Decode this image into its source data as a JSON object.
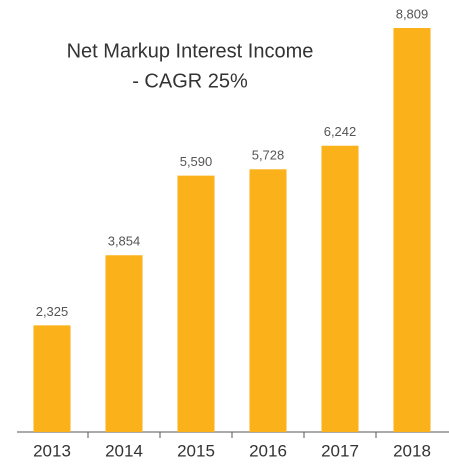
{
  "chart_data": {
    "type": "bar",
    "title": "Net Markup Interest Income",
    "subtitle": "- CAGR 25%",
    "categories": [
      "2013",
      "2014",
      "2015",
      "2016",
      "2017",
      "2018"
    ],
    "values": [
      2325,
      3854,
      5590,
      5728,
      6242,
      8809
    ],
    "value_labels": [
      "2,325",
      "3,854",
      "5,590",
      "5,728",
      "6,242",
      "8,809"
    ],
    "color": "#fbb21a"
  }
}
